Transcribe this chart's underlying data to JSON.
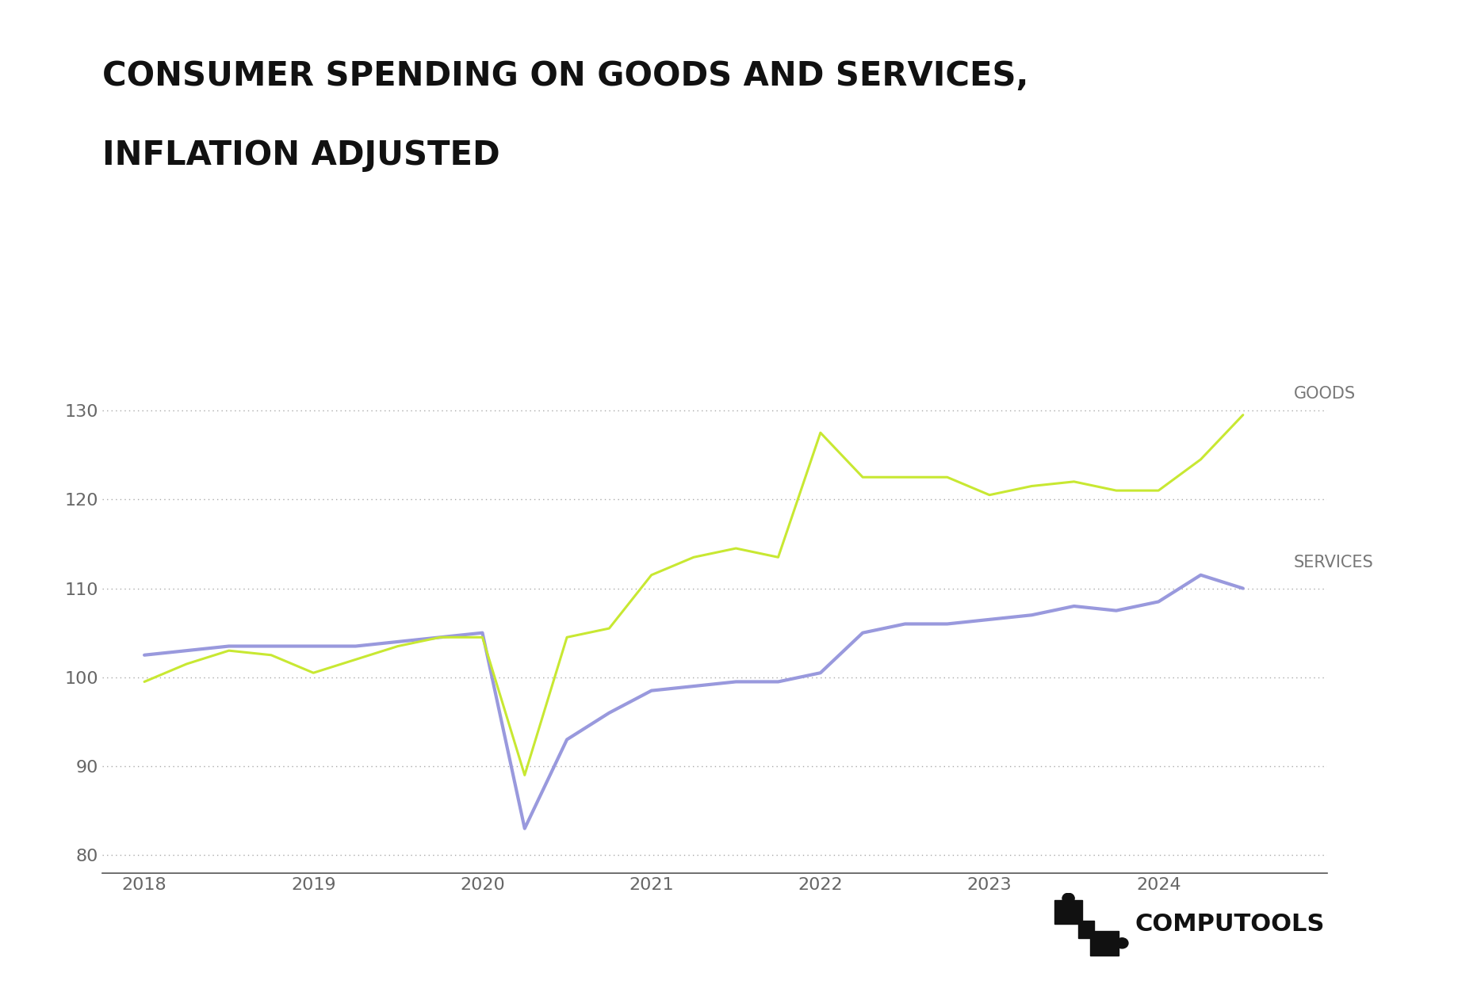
{
  "title_line1": "CONSUMER SPENDING ON GOODS AND SERVICES,",
  "title_line2": "INFLATION ADJUSTED",
  "title_fontsize": 30,
  "title_fontweight": "bold",
  "background_color": "#ffffff",
  "goods_color": "#c8e832",
  "services_color": "#9999dd",
  "grid_color": "#aaaaaa",
  "axis_color": "#555555",
  "tick_label_color": "#666666",
  "annotation_color": "#777777",
  "ylim": [
    78,
    136
  ],
  "yticks": [
    80,
    90,
    100,
    110,
    120,
    130
  ],
  "line_width": 2.2,
  "goods_label": "GOODS",
  "services_label": "SERVICES",
  "goods_values": [
    99.5,
    101.5,
    103.0,
    102.5,
    100.5,
    102.0,
    103.5,
    104.5,
    104.5,
    89.0,
    104.5,
    105.5,
    111.5,
    113.5,
    114.5,
    113.5,
    127.5,
    122.5,
    122.5,
    122.5,
    120.5,
    121.5,
    122.0,
    121.0,
    121.0,
    124.5,
    129.5
  ],
  "services_values": [
    102.5,
    103.0,
    103.5,
    103.5,
    103.5,
    103.5,
    104.0,
    104.5,
    105.0,
    83.0,
    93.0,
    96.0,
    98.5,
    99.0,
    99.5,
    99.5,
    100.5,
    105.0,
    106.0,
    106.0,
    106.5,
    107.0,
    108.0,
    107.5,
    108.5,
    111.5,
    110.0
  ],
  "xtick_positions": [
    1,
    5,
    9,
    13,
    17,
    21,
    25
  ],
  "xtick_labels": [
    "2019",
    "2020",
    "2021",
    "2022",
    "2023",
    "2024",
    ""
  ],
  "logo_text": "COMPUTOOLS",
  "logo_fontsize": 22
}
